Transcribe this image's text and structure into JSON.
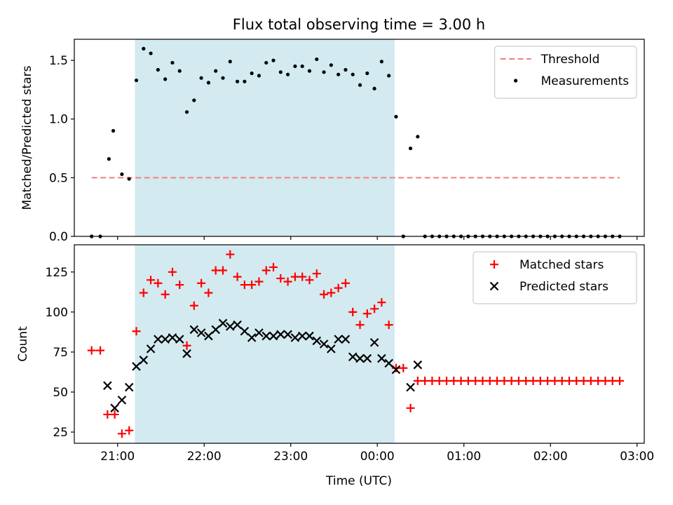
{
  "chart_data": {
    "type": "scatter",
    "title": "Flux total observing time = 3.00 h",
    "xlabel": "Time (UTC)",
    "x_ticks": [
      "21:00",
      "22:00",
      "23:00",
      "00:00",
      "01:00",
      "02:00",
      "03:00"
    ],
    "x_range": [
      "20:30",
      "03:05"
    ],
    "observing_window": {
      "start": "21:12",
      "end": "00:12",
      "color": "#d3eaf0"
    },
    "panels": [
      {
        "id": "ratio",
        "ylabel": "Matched/Predicted stars",
        "ylim": [
          0,
          1.68
        ],
        "y_ticks": [
          0.0,
          0.5,
          1.0,
          1.5
        ],
        "legend_position": "upper right",
        "threshold": {
          "name": "Threshold",
          "value": 0.5,
          "x_from": "20:42",
          "x_to": "02:48",
          "color": "#f08080"
        },
        "series": [
          {
            "name": "Measurements",
            "marker": "dot",
            "color": "#000000",
            "points": [
              [
                "20:42",
                0.0
              ],
              [
                "20:48",
                0.0
              ],
              [
                "20:54",
                0.66
              ],
              [
                "20:57",
                0.9
              ],
              [
                "21:03",
                0.53
              ],
              [
                "21:08",
                0.49
              ],
              [
                "21:13",
                1.33
              ],
              [
                "21:18",
                1.6
              ],
              [
                "21:23",
                1.56
              ],
              [
                "21:28",
                1.42
              ],
              [
                "21:33",
                1.34
              ],
              [
                "21:38",
                1.48
              ],
              [
                "21:43",
                1.41
              ],
              [
                "21:48",
                1.06
              ],
              [
                "21:53",
                1.16
              ],
              [
                "21:58",
                1.35
              ],
              [
                "22:03",
                1.31
              ],
              [
                "22:08",
                1.41
              ],
              [
                "22:13",
                1.35
              ],
              [
                "22:18",
                1.49
              ],
              [
                "22:23",
                1.32
              ],
              [
                "22:28",
                1.32
              ],
              [
                "22:33",
                1.39
              ],
              [
                "22:38",
                1.37
              ],
              [
                "22:43",
                1.48
              ],
              [
                "22:48",
                1.5
              ],
              [
                "22:53",
                1.4
              ],
              [
                "22:58",
                1.38
              ],
              [
                "23:03",
                1.45
              ],
              [
                "23:08",
                1.45
              ],
              [
                "23:13",
                1.41
              ],
              [
                "23:18",
                1.51
              ],
              [
                "23:23",
                1.4
              ],
              [
                "23:28",
                1.46
              ],
              [
                "23:33",
                1.38
              ],
              [
                "23:38",
                1.42
              ],
              [
                "23:43",
                1.38
              ],
              [
                "23:48",
                1.29
              ],
              [
                "23:53",
                1.39
              ],
              [
                "23:58",
                1.26
              ],
              [
                "00:03",
                1.49
              ],
              [
                "00:08",
                1.37
              ],
              [
                "00:13",
                1.02
              ],
              [
                "00:18",
                0.0
              ],
              [
                "00:23",
                0.75
              ],
              [
                "00:28",
                0.85
              ],
              [
                "00:33",
                0.0
              ],
              [
                "00:38",
                0.0
              ],
              [
                "00:43",
                0.0
              ],
              [
                "00:48",
                0.0
              ],
              [
                "00:53",
                0.0
              ],
              [
                "00:58",
                0.0
              ],
              [
                "01:03",
                0.0
              ],
              [
                "01:08",
                0.0
              ],
              [
                "01:13",
                0.0
              ],
              [
                "01:18",
                0.0
              ],
              [
                "01:23",
                0.0
              ],
              [
                "01:28",
                0.0
              ],
              [
                "01:33",
                0.0
              ],
              [
                "01:38",
                0.0
              ],
              [
                "01:43",
                0.0
              ],
              [
                "01:48",
                0.0
              ],
              [
                "01:53",
                0.0
              ],
              [
                "01:58",
                0.0
              ],
              [
                "02:03",
                0.0
              ],
              [
                "02:08",
                0.0
              ],
              [
                "02:13",
                0.0
              ],
              [
                "02:18",
                0.0
              ],
              [
                "02:23",
                0.0
              ],
              [
                "02:28",
                0.0
              ],
              [
                "02:33",
                0.0
              ],
              [
                "02:38",
                0.0
              ],
              [
                "02:43",
                0.0
              ],
              [
                "02:48",
                0.0
              ]
            ]
          }
        ]
      },
      {
        "id": "counts",
        "ylabel": "Count",
        "ylim": [
          18,
          142
        ],
        "y_ticks": [
          25,
          50,
          75,
          100,
          125
        ],
        "legend_position": "upper right",
        "series": [
          {
            "name": "Matched stars",
            "marker": "plus",
            "color": "#ff0000",
            "points": [
              [
                "20:42",
                76
              ],
              [
                "20:48",
                76
              ],
              [
                "20:53",
                36
              ],
              [
                "20:58",
                36
              ],
              [
                "21:03",
                24
              ],
              [
                "21:08",
                26
              ],
              [
                "21:13",
                88
              ],
              [
                "21:18",
                112
              ],
              [
                "21:23",
                120
              ],
              [
                "21:28",
                118
              ],
              [
                "21:33",
                111
              ],
              [
                "21:38",
                125
              ],
              [
                "21:43",
                117
              ],
              [
                "21:48",
                79
              ],
              [
                "21:53",
                104
              ],
              [
                "21:58",
                118
              ],
              [
                "22:03",
                112
              ],
              [
                "22:08",
                126
              ],
              [
                "22:13",
                126
              ],
              [
                "22:18",
                136
              ],
              [
                "22:23",
                122
              ],
              [
                "22:28",
                117
              ],
              [
                "22:33",
                117
              ],
              [
                "22:38",
                119
              ],
              [
                "22:43",
                126
              ],
              [
                "22:48",
                128
              ],
              [
                "22:53",
                121
              ],
              [
                "22:58",
                119
              ],
              [
                "23:03",
                122
              ],
              [
                "23:08",
                122
              ],
              [
                "23:13",
                120
              ],
              [
                "23:18",
                124
              ],
              [
                "23:23",
                111
              ],
              [
                "23:28",
                112
              ],
              [
                "23:33",
                115
              ],
              [
                "23:38",
                118
              ],
              [
                "23:43",
                100
              ],
              [
                "23:48",
                92
              ],
              [
                "23:53",
                99
              ],
              [
                "23:58",
                102
              ],
              [
                "00:03",
                106
              ],
              [
                "00:08",
                92
              ],
              [
                "00:13",
                65
              ],
              [
                "00:18",
                65
              ],
              [
                "00:23",
                40
              ],
              [
                "00:28",
                57
              ],
              [
                "00:33",
                57
              ],
              [
                "00:38",
                57
              ],
              [
                "00:43",
                57
              ],
              [
                "00:48",
                57
              ],
              [
                "00:53",
                57
              ],
              [
                "00:58",
                57
              ],
              [
                "01:03",
                57
              ],
              [
                "01:08",
                57
              ],
              [
                "01:13",
                57
              ],
              [
                "01:18",
                57
              ],
              [
                "01:23",
                57
              ],
              [
                "01:28",
                57
              ],
              [
                "01:33",
                57
              ],
              [
                "01:38",
                57
              ],
              [
                "01:43",
                57
              ],
              [
                "01:48",
                57
              ],
              [
                "01:53",
                57
              ],
              [
                "01:58",
                57
              ],
              [
                "02:03",
                57
              ],
              [
                "02:08",
                57
              ],
              [
                "02:13",
                57
              ],
              [
                "02:18",
                57
              ],
              [
                "02:23",
                57
              ],
              [
                "02:28",
                57
              ],
              [
                "02:33",
                57
              ],
              [
                "02:38",
                57
              ],
              [
                "02:43",
                57
              ],
              [
                "02:48",
                57
              ]
            ]
          },
          {
            "name": "Predicted stars",
            "marker": "x",
            "color": "#000000",
            "points": [
              [
                "20:53",
                54
              ],
              [
                "20:58",
                40
              ],
              [
                "21:03",
                45
              ],
              [
                "21:08",
                53
              ],
              [
                "21:13",
                66
              ],
              [
                "21:18",
                70
              ],
              [
                "21:23",
                77
              ],
              [
                "21:28",
                83
              ],
              [
                "21:33",
                83
              ],
              [
                "21:38",
                84
              ],
              [
                "21:43",
                83
              ],
              [
                "21:48",
                74
              ],
              [
                "21:53",
                89
              ],
              [
                "21:58",
                87
              ],
              [
                "22:03",
                85
              ],
              [
                "22:08",
                89
              ],
              [
                "22:13",
                93
              ],
              [
                "22:18",
                91
              ],
              [
                "22:23",
                92
              ],
              [
                "22:28",
                88
              ],
              [
                "22:33",
                84
              ],
              [
                "22:38",
                87
              ],
              [
                "22:43",
                85
              ],
              [
                "22:48",
                85
              ],
              [
                "22:53",
                86
              ],
              [
                "22:58",
                86
              ],
              [
                "23:03",
                84
              ],
              [
                "23:08",
                85
              ],
              [
                "23:13",
                85
              ],
              [
                "23:18",
                82
              ],
              [
                "23:23",
                80
              ],
              [
                "23:28",
                77
              ],
              [
                "23:33",
                83
              ],
              [
                "23:38",
                83
              ],
              [
                "23:43",
                72
              ],
              [
                "23:48",
                71
              ],
              [
                "23:53",
                71
              ],
              [
                "23:58",
                81
              ],
              [
                "00:03",
                71
              ],
              [
                "00:08",
                68
              ],
              [
                "00:13",
                64
              ],
              [
                "00:23",
                53
              ],
              [
                "00:28",
                67
              ]
            ]
          }
        ]
      }
    ]
  }
}
